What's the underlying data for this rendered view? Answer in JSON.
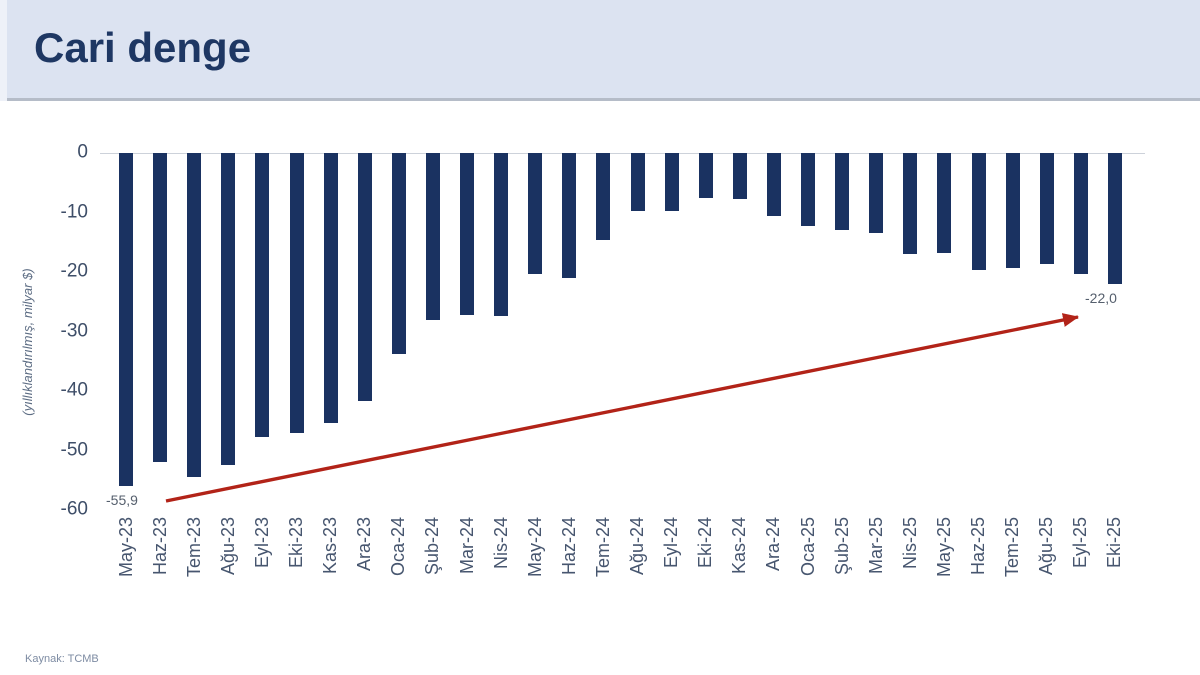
{
  "header": {
    "title": "Cari denge"
  },
  "source": "Kaynak: TCMB",
  "chart_data": {
    "type": "bar",
    "title": "Cari denge",
    "xlabel": "",
    "ylabel": "(yıllıklandırılmış, milyar $)",
    "ylim": [
      -60,
      0
    ],
    "yticks": [
      "0",
      "-10",
      "-20",
      "-30",
      "-40",
      "-50",
      "-60"
    ],
    "ytick_values": [
      0,
      -10,
      -20,
      -30,
      -40,
      -50,
      -60
    ],
    "grid": false,
    "legend": false,
    "bar_color": "#1a3261",
    "arrow_color": "#b22318",
    "categories": [
      "May-23",
      "Haz-23",
      "Tem-23",
      "Ağu-23",
      "Eyl-23",
      "Eki-23",
      "Kas-23",
      "Ara-23",
      "Oca-24",
      "Şub-24",
      "Mar-24",
      "Nis-24",
      "May-24",
      "Haz-24",
      "Tem-24",
      "Ağu-24",
      "Eyl-24",
      "Eki-24",
      "Kas-24",
      "Ara-24",
      "Oca-25",
      "Şub-25",
      "Mar-25",
      "Nis-25",
      "May-25",
      "Haz-25",
      "Tem-25",
      "Ağu-25",
      "Eyl-25",
      "Eki-25"
    ],
    "values": [
      -55.9,
      -52.0,
      -54.5,
      -52.5,
      -47.8,
      -47.0,
      -45.3,
      -41.7,
      -33.7,
      -28.0,
      -27.3,
      -27.4,
      -20.4,
      -21.0,
      -14.7,
      -9.8,
      -9.7,
      -7.6,
      -7.7,
      -10.6,
      -12.2,
      -12.9,
      -13.5,
      -16.9,
      -16.8,
      -19.6,
      -19.3,
      -18.6,
      -20.4,
      -22.0
    ],
    "annotations": [
      {
        "label": "-55,9",
        "category": "May-23",
        "value": -55.9
      },
      {
        "label": "-22,0",
        "category": "Eki-25",
        "value": -22.0
      }
    ],
    "trend_arrow": {
      "from_category": "May-23",
      "to_category": "Eki-25",
      "direction": "up-right"
    }
  }
}
